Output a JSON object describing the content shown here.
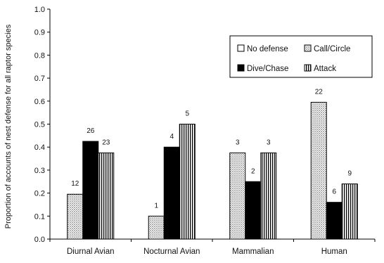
{
  "chart_data": {
    "type": "bar",
    "title": "",
    "xlabel": "",
    "ylabel": "Proportion of accounts of nest defense for all raptor species",
    "ylim": [
      0,
      1.0
    ],
    "yticks": [
      "0.0",
      "0.1",
      "0.2",
      "0.3",
      "0.4",
      "0.5",
      "0.6",
      "0.7",
      "0.8",
      "0.9",
      "1.0"
    ],
    "grid": false,
    "legend_position": "top-right",
    "categories": [
      "Diurnal Avian",
      "Nocturnal Avian",
      "Mammalian",
      "Human"
    ],
    "series": [
      {
        "name": "No defense",
        "pattern": "none",
        "color": "#ffffff",
        "values": [
          null,
          null,
          null,
          null
        ],
        "labels": [
          "",
          "",
          "",
          ""
        ]
      },
      {
        "name": "Call/Circle",
        "pattern": "dots",
        "color": "#d9d9d9",
        "values": [
          0.195,
          0.1,
          0.375,
          0.595
        ],
        "labels": [
          "12",
          "1",
          "3",
          "22"
        ]
      },
      {
        "name": "Dive/Chase",
        "pattern": "solid",
        "color": "#000000",
        "values": [
          0.425,
          0.4,
          0.25,
          0.16
        ],
        "labels": [
          "26",
          "4",
          "2",
          "6"
        ]
      },
      {
        "name": "Attack",
        "pattern": "vertical-stripes",
        "color": "#ffffff",
        "values": [
          0.375,
          0.5,
          0.375,
          0.24
        ],
        "labels": [
          "23",
          "5",
          "3",
          "9"
        ]
      }
    ]
  }
}
